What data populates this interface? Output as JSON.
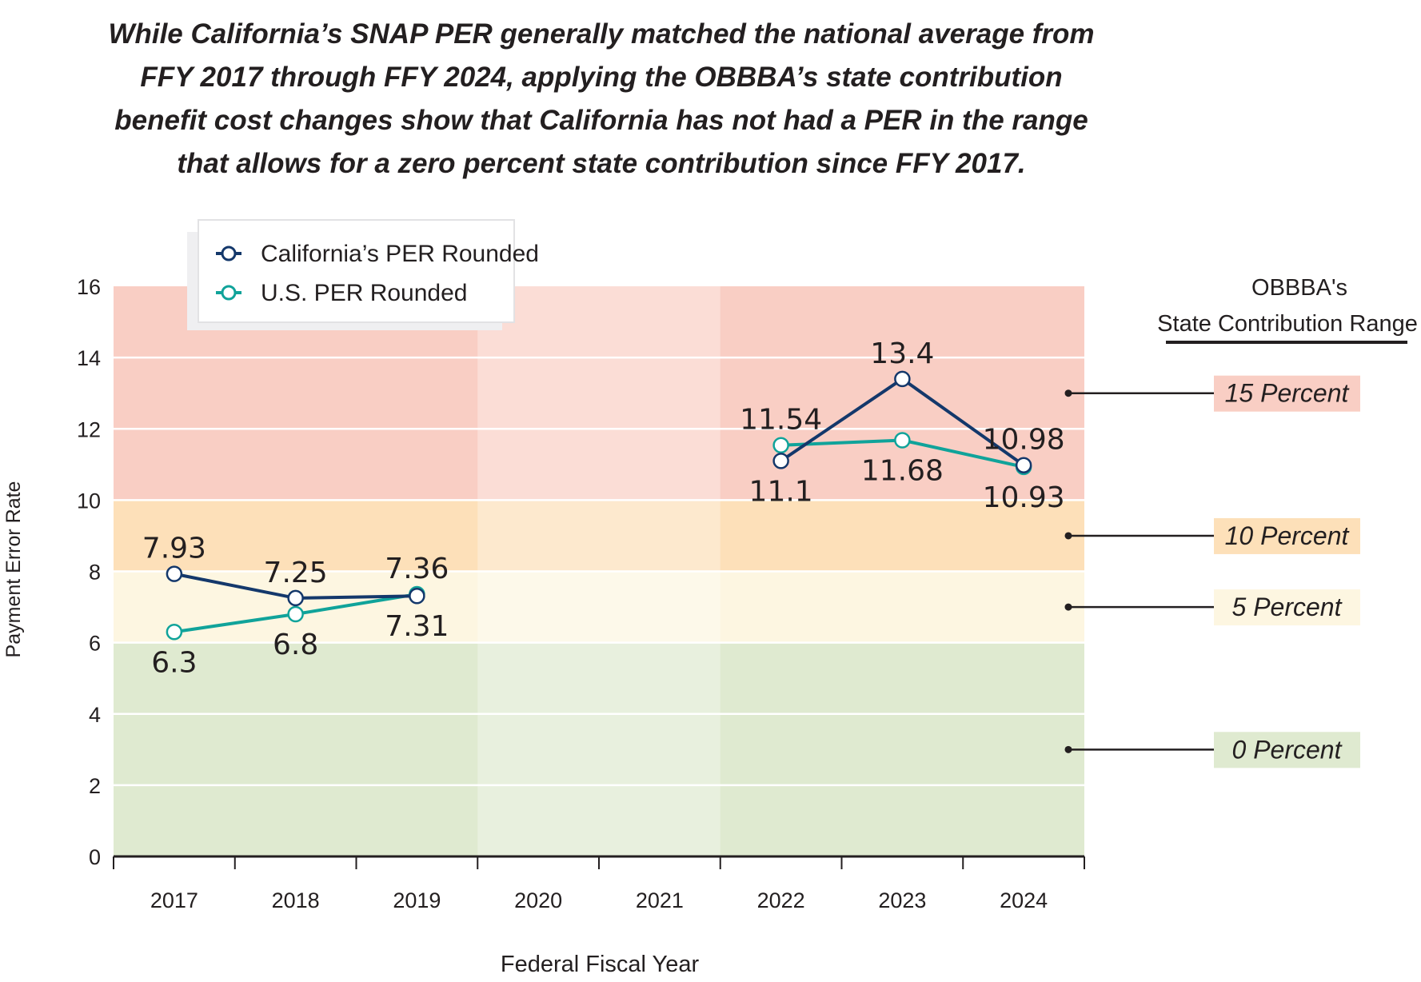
{
  "chart_data": {
    "type": "line",
    "title": "While California’s SNAP PER generally matched the national average from FFY 2017 through FFY 2024, applying the OBBBA’s state contribution benefit cost changes show that California has not had a PER in the range that allows for a zero percent state contribution since FFY 2017.",
    "title_lines": [
      "While California’s SNAP PER generally matched the national average from",
      "FFY 2017 through FFY 2024, applying the OBBBA’s state contribution",
      "benefit cost changes show that California has not had a PER in the range",
      "that allows for a zero percent state contribution since FFY 2017."
    ],
    "xlabel": "Federal Fiscal Year",
    "ylabel": "Payment Error Rate",
    "categories": [
      "2017",
      "2018",
      "2019",
      "2020",
      "2021",
      "2022",
      "2023",
      "2024"
    ],
    "ylim": [
      0,
      16
    ],
    "yticks": [
      0,
      2,
      4,
      6,
      8,
      10,
      12,
      14,
      16
    ],
    "grid": true,
    "legend_position": "top-left",
    "series": [
      {
        "name": "California’s PER Rounded",
        "color": "#14386b",
        "values": [
          7.93,
          7.25,
          7.31,
          null,
          null,
          11.1,
          13.4,
          10.98
        ]
      },
      {
        "name": "U.S. PER Rounded",
        "color": "#10a39a",
        "values": [
          6.3,
          6.8,
          7.36,
          null,
          null,
          11.54,
          11.68,
          10.93
        ]
      }
    ],
    "bands": [
      {
        "from": 10,
        "to": 16,
        "label": "15 Percent",
        "color": "#f9cec4",
        "marker_y": 13
      },
      {
        "from": 8,
        "to": 10,
        "label": "10 Percent",
        "color": "#fde0b9",
        "marker_y": 9
      },
      {
        "from": 6,
        "to": 8,
        "label": "5 Percent",
        "color": "#fdf6e1",
        "marker_y": 7
      },
      {
        "from": 0,
        "to": 6,
        "label": "0 Percent",
        "color": "#dfead0",
        "marker_y": 3
      }
    ],
    "side_header": {
      "line1": "OBBBA's",
      "line2": "State Contribution Range"
    }
  }
}
